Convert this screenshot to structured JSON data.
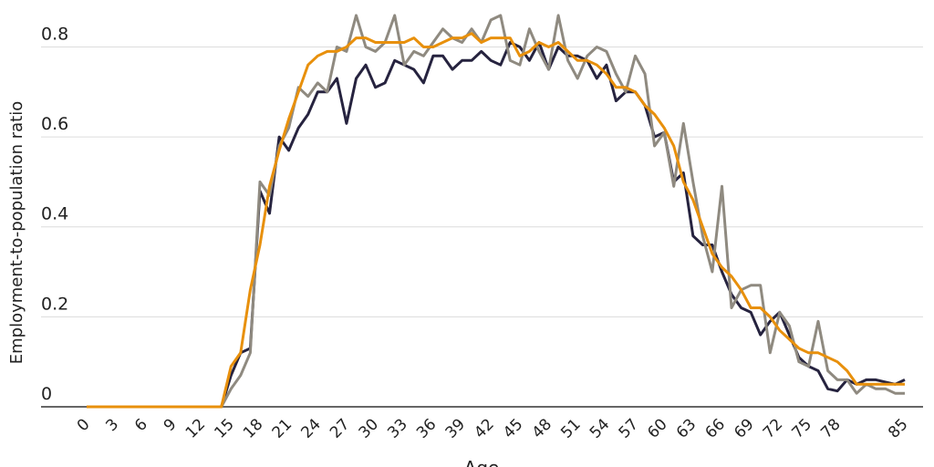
{
  "chart_data": {
    "type": "line",
    "y_label": "Employment-to-population ratio",
    "x_label": "Age",
    "x": [
      0,
      1,
      2,
      3,
      4,
      5,
      6,
      7,
      8,
      9,
      10,
      11,
      12,
      13,
      14,
      15,
      16,
      17,
      18,
      19,
      20,
      21,
      22,
      23,
      24,
      25,
      26,
      27,
      28,
      29,
      30,
      31,
      32,
      33,
      34,
      35,
      36,
      37,
      38,
      39,
      40,
      41,
      42,
      43,
      44,
      45,
      46,
      47,
      48,
      49,
      50,
      51,
      52,
      53,
      54,
      55,
      56,
      57,
      58,
      59,
      60,
      61,
      62,
      63,
      64,
      65,
      66,
      67,
      68,
      69,
      70,
      71,
      72,
      73,
      74,
      75,
      76,
      77,
      78,
      79,
      80,
      81,
      82,
      83,
      84,
      85
    ],
    "xlim": [
      0,
      85
    ],
    "xticks": [
      0,
      3,
      6,
      9,
      12,
      15,
      18,
      21,
      24,
      27,
      30,
      33,
      36,
      39,
      42,
      45,
      48,
      51,
      54,
      57,
      60,
      63,
      66,
      69,
      72,
      75,
      78,
      85
    ],
    "ylim": [
      0,
      0.88
    ],
    "yticks": [
      0,
      0.2,
      0.4,
      0.6,
      0.8
    ],
    "grid": true,
    "series": [
      {
        "color": "#26233f",
        "values": [
          0,
          0,
          0,
          0,
          0,
          0,
          0,
          0,
          0,
          0,
          0,
          0,
          0,
          0,
          0,
          0.07,
          0.12,
          0.13,
          0.48,
          0.43,
          0.6,
          0.57,
          0.62,
          0.65,
          0.7,
          0.7,
          0.73,
          0.63,
          0.73,
          0.76,
          0.71,
          0.72,
          0.77,
          0.76,
          0.75,
          0.72,
          0.78,
          0.78,
          0.75,
          0.77,
          0.77,
          0.79,
          0.77,
          0.76,
          0.81,
          0.8,
          0.77,
          0.81,
          0.75,
          0.8,
          0.78,
          0.78,
          0.77,
          0.73,
          0.76,
          0.68,
          0.7,
          0.7,
          0.67,
          0.6,
          0.61,
          0.5,
          0.52,
          0.38,
          0.36,
          0.36,
          0.3,
          0.25,
          0.22,
          0.21,
          0.16,
          0.19,
          0.21,
          0.16,
          0.11,
          0.09,
          0.08,
          0.04,
          0.035,
          0.06,
          0.05,
          0.06,
          0.06,
          0.055,
          0.05,
          0.06
        ]
      },
      {
        "color": "#8f8a80",
        "values": [
          0,
          0,
          0,
          0,
          0,
          0,
          0,
          0,
          0,
          0,
          0,
          0,
          0,
          0,
          0,
          0.04,
          0.07,
          0.12,
          0.5,
          0.47,
          0.58,
          0.62,
          0.71,
          0.69,
          0.72,
          0.7,
          0.8,
          0.79,
          0.87,
          0.8,
          0.79,
          0.81,
          0.87,
          0.76,
          0.79,
          0.78,
          0.81,
          0.84,
          0.82,
          0.81,
          0.84,
          0.81,
          0.86,
          0.87,
          0.77,
          0.76,
          0.84,
          0.79,
          0.75,
          0.87,
          0.77,
          0.73,
          0.78,
          0.8,
          0.79,
          0.74,
          0.7,
          0.78,
          0.74,
          0.58,
          0.61,
          0.49,
          0.63,
          0.5,
          0.38,
          0.3,
          0.49,
          0.22,
          0.26,
          0.27,
          0.27,
          0.12,
          0.21,
          0.18,
          0.1,
          0.09,
          0.19,
          0.08,
          0.06,
          0.06,
          0.03,
          0.05,
          0.04,
          0.04,
          0.03,
          0.03
        ]
      },
      {
        "color": "#e8900c",
        "values": [
          0,
          0,
          0,
          0,
          0,
          0,
          0,
          0,
          0,
          0,
          0,
          0,
          0,
          0,
          0,
          0.09,
          0.12,
          0.26,
          0.36,
          0.49,
          0.57,
          0.64,
          0.7,
          0.76,
          0.78,
          0.79,
          0.79,
          0.8,
          0.82,
          0.82,
          0.81,
          0.81,
          0.81,
          0.81,
          0.82,
          0.8,
          0.8,
          0.81,
          0.82,
          0.82,
          0.83,
          0.81,
          0.82,
          0.82,
          0.82,
          0.78,
          0.79,
          0.81,
          0.8,
          0.81,
          0.79,
          0.77,
          0.77,
          0.76,
          0.74,
          0.71,
          0.71,
          0.7,
          0.67,
          0.65,
          0.62,
          0.58,
          0.5,
          0.46,
          0.4,
          0.34,
          0.31,
          0.29,
          0.26,
          0.22,
          0.22,
          0.2,
          0.17,
          0.15,
          0.13,
          0.12,
          0.12,
          0.11,
          0.1,
          0.08,
          0.05,
          0.05,
          0.05,
          0.05,
          0.05,
          0.05
        ]
      }
    ]
  }
}
